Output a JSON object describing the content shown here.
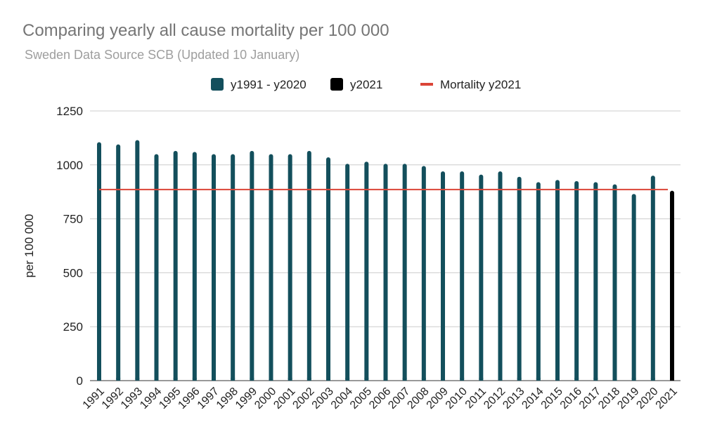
{
  "chart_data": {
    "type": "bar",
    "title": "Comparing yearly all cause mortality per 100 000",
    "subtitle": "Sweden Data Source SCB (Updated 10 January)",
    "ylabel": "per 100 000",
    "xlabel": "",
    "ylim": [
      0,
      1250
    ],
    "yticks": [
      0,
      250,
      500,
      750,
      1000,
      1250
    ],
    "grid": true,
    "legend_position": "top",
    "categories": [
      "1991",
      "1992",
      "1993",
      "1994",
      "1995",
      "1996",
      "1997",
      "1998",
      "1999",
      "2000",
      "2001",
      "2002",
      "2003",
      "2004",
      "2005",
      "2006",
      "2007",
      "2008",
      "2009",
      "2010",
      "2011",
      "2012",
      "2013",
      "2014",
      "2015",
      "2016",
      "2017",
      "2018",
      "2019",
      "2020",
      "2021"
    ],
    "series": [
      {
        "name": "y1991 - y2020",
        "color": "#134f5c",
        "values": [
          1105,
          1095,
          1115,
          1050,
          1065,
          1060,
          1050,
          1050,
          1065,
          1050,
          1050,
          1065,
          1035,
          1005,
          1015,
          1005,
          1005,
          995,
          970,
          970,
          955,
          970,
          945,
          920,
          930,
          925,
          920,
          910,
          865,
          950,
          null
        ]
      },
      {
        "name": "y2021",
        "color": "#000000",
        "values": [
          null,
          null,
          null,
          null,
          null,
          null,
          null,
          null,
          null,
          null,
          null,
          null,
          null,
          null,
          null,
          null,
          null,
          null,
          null,
          null,
          null,
          null,
          null,
          null,
          null,
          null,
          null,
          null,
          null,
          null,
          880
        ]
      }
    ],
    "reference_line": {
      "name": "Mortality y2021",
      "color": "#db4437",
      "value": 886
    }
  }
}
